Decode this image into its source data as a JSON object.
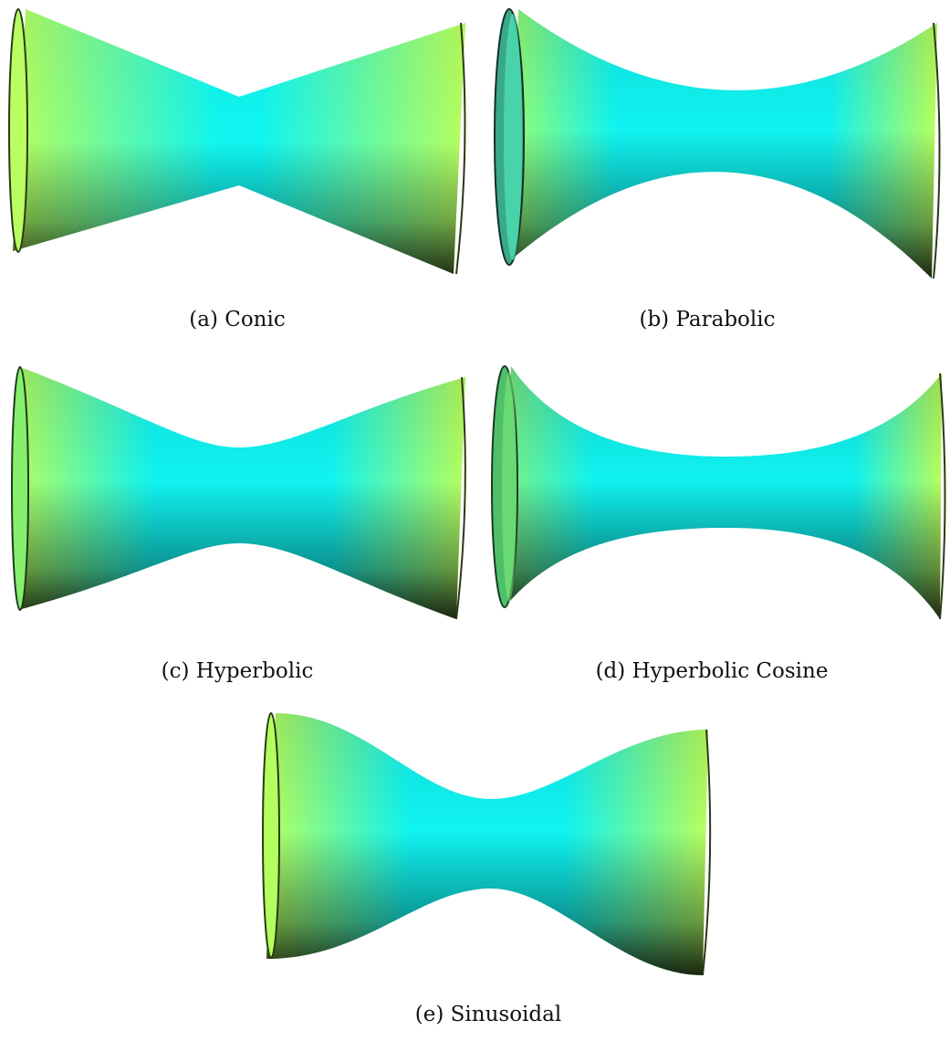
{
  "figure": {
    "panels": [
      {
        "key": "a",
        "caption": "(a) Conic",
        "profile": "conic"
      },
      {
        "key": "b",
        "caption": "(b) Parabolic",
        "profile": "parabolic"
      },
      {
        "key": "c",
        "caption": "(c) Hyperbolic",
        "profile": "hyperbolic"
      },
      {
        "key": "d",
        "caption": "(d) Hyperbolic Cosine",
        "profile": "hyperbolic-cosine"
      },
      {
        "key": "e",
        "caption": "(e) Sinusoidal",
        "profile": "sinusoidal"
      }
    ],
    "colors": {
      "surface_end": "#b8ff5c",
      "surface_mid": "#00ffff",
      "shadow": "#0b1a12",
      "rim_dark": "#1f2e10"
    }
  }
}
